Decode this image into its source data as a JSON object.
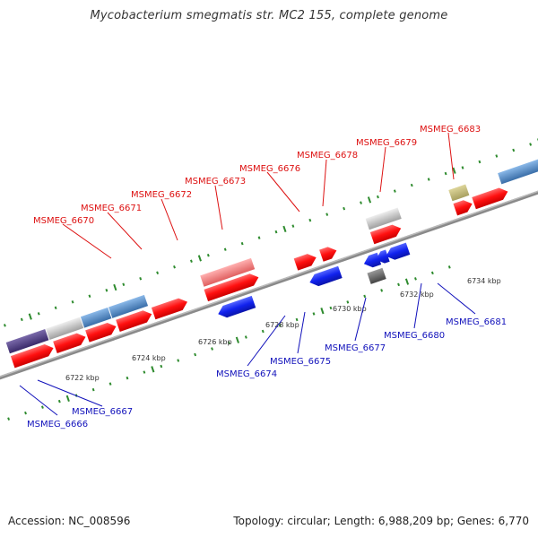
{
  "title": "Mycobacterium smegmatis str. MC2 155, complete genome",
  "footer": {
    "accession": "Accession: NC_008596",
    "stats": "Topology: circular; Length: 6,988,209 bp; Genes: 6,770"
  },
  "colors": {
    "forward_gene": "#ff1a1a",
    "reverse_gene": "#1a2ee6",
    "forward_label": "#dd1111",
    "reverse_label": "#1111bb",
    "backbone": "#8a8a8a",
    "tick": "#2e8b2e"
  },
  "scale_labels": {
    "reverse": [
      "6722 kbp",
      "6724 kbp",
      "6726 kbp",
      "6728 kbp",
      "6730 kbp",
      "6732 kbp",
      "6734 kbp"
    ]
  },
  "forward_labels": [
    "MSMEG_6670",
    "MSMEG_6671",
    "MSMEG_6672",
    "MSMEG_6673",
    "MSMEG_6676",
    "MSMEG_6678",
    "MSMEG_6679",
    "MSMEG_6683"
  ],
  "reverse_labels": [
    "MSMEG_6666",
    "MSMEG_6667",
    "MSMEG_6674",
    "MSMEG_6675",
    "MSMEG_6677",
    "MSMEG_6680",
    "MSMEG_6681"
  ]
}
